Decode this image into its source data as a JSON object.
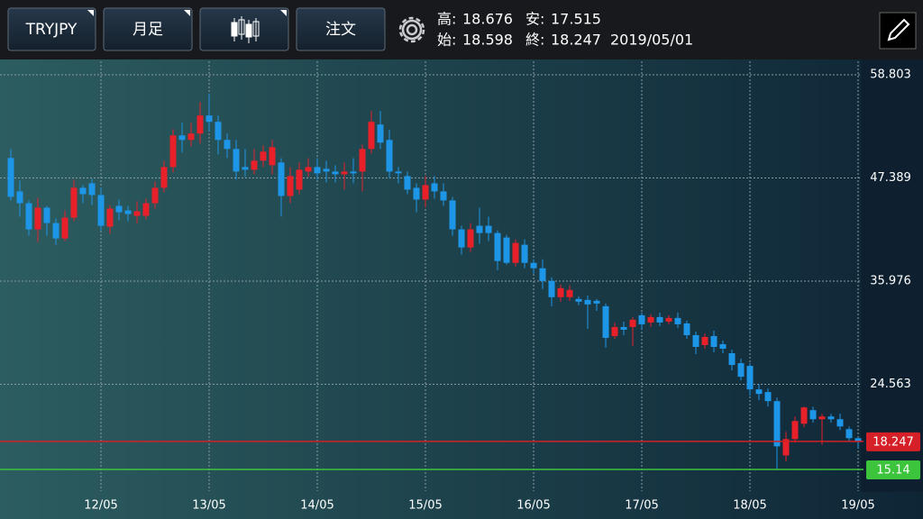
{
  "toolbar": {
    "symbol": "TRYJPY",
    "period": "月足",
    "order": "注文"
  },
  "ohlc_info": {
    "high_label": "高:",
    "high": 18.676,
    "low_label": "安:",
    "low": 17.515,
    "open_label": "始:",
    "open": 18.598,
    "close_label": "終:",
    "close": 18.247,
    "date": "2019/05/01"
  },
  "chart_data": {
    "type": "candlestick",
    "categories": [
      null,
      null,
      null,
      null,
      null,
      null,
      null,
      null,
      null,
      null,
      "12/05",
      null,
      null,
      null,
      null,
      null,
      null,
      null,
      null,
      null,
      null,
      null,
      "13/05",
      null,
      null,
      null,
      null,
      null,
      null,
      null,
      null,
      null,
      null,
      null,
      "14/05",
      null,
      null,
      null,
      null,
      null,
      null,
      null,
      null,
      null,
      null,
      null,
      "15/05",
      null,
      null,
      null,
      null,
      null,
      null,
      null,
      null,
      null,
      null,
      null,
      "16/05",
      null,
      null,
      null,
      null,
      null,
      null,
      null,
      null,
      null,
      null,
      null,
      "17/05",
      null,
      null,
      null,
      null,
      null,
      null,
      null,
      null,
      null,
      null,
      null,
      "18/05",
      null,
      null,
      null,
      null,
      null,
      null,
      null,
      null,
      null,
      null,
      null,
      "19/05"
    ],
    "open": [
      49.6,
      45.9,
      44.6,
      41.7,
      44.1,
      42.4,
      40.7,
      43.0,
      46.3,
      46.8,
      45.5,
      42.0,
      44.3,
      43.8,
      43.2,
      43.2,
      44.6,
      46.3,
      48.6,
      52.1,
      51.6,
      52.3,
      54.3,
      53.6,
      51.6,
      50.6,
      48.6,
      48.3,
      49.3,
      48.8,
      49.1,
      45.4,
      46.1,
      48.1,
      48.6,
      48.4,
      48.1,
      47.8,
      48.1,
      48.1,
      50.6,
      53.3,
      51.6,
      48.1,
      47.6,
      46.3,
      45.0,
      46.8,
      45.9,
      44.9,
      41.7,
      39.7,
      42.1,
      42.1,
      41.3,
      40.8,
      38.0,
      40.0,
      38.0,
      37.4,
      36.0,
      34.2,
      34.2,
      34.0,
      33.9,
      33.8,
      33.2,
      29.9,
      30.9,
      30.9,
      32.2,
      31.4,
      32.0,
      31.5,
      31.9,
      31.3,
      30.0,
      28.9,
      29.9,
      29.0,
      28.0,
      26.9,
      26.6,
      24.0,
      23.7,
      22.7,
      16.7,
      18.5,
      20.2,
      21.7,
      20.7,
      21.0,
      20.7,
      19.6,
      18.598
    ],
    "high": [
      50.6,
      47.1,
      44.9,
      45.2,
      44.3,
      42.9,
      43.8,
      47.2,
      46.6,
      47.3,
      46.3,
      44.4,
      45.0,
      44.3,
      44.8,
      45.1,
      47.0,
      49.3,
      52.8,
      53.5,
      53.5,
      55.8,
      56.7,
      54.3,
      52.3,
      51.6,
      50.6,
      50.6,
      51.0,
      51.6,
      49.6,
      48.6,
      49.1,
      49.6,
      49.6,
      49.3,
      48.8,
      49.1,
      49.6,
      51.1,
      54.8,
      54.8,
      52.7,
      48.6,
      48.1,
      46.8,
      47.6,
      47.6,
      46.8,
      45.3,
      42.1,
      42.4,
      44.1,
      43.1,
      41.6,
      41.1,
      40.6,
      40.6,
      38.4,
      38.4,
      36.4,
      35.6,
      35.5,
      34.3,
      34.4,
      34.0,
      33.5,
      31.4,
      31.5,
      32.0,
      32.5,
      32.3,
      32.5,
      32.2,
      32.5,
      31.6,
      30.4,
      30.2,
      30.5,
      29.4,
      28.4,
      27.4,
      26.9,
      24.6,
      24.1,
      23.1,
      19.3,
      21.0,
      22.1,
      22.1,
      21.3,
      21.3,
      21.3,
      19.9,
      18.676
    ],
    "low": [
      44.9,
      43.1,
      41.0,
      40.3,
      41.0,
      40.0,
      40.4,
      42.6,
      44.6,
      44.4,
      41.6,
      41.2,
      42.7,
      42.6,
      42.4,
      42.8,
      44.0,
      45.8,
      48.0,
      50.2,
      50.9,
      51.2,
      52.6,
      50.0,
      49.6,
      47.2,
      47.5,
      47.8,
      48.6,
      47.8,
      43.1,
      44.6,
      45.6,
      47.5,
      47.2,
      46.9,
      46.9,
      46.1,
      46.8,
      45.9,
      50.1,
      50.6,
      47.4,
      46.8,
      45.6,
      43.6,
      44.1,
      45.1,
      44.3,
      41.0,
      38.9,
      39.2,
      40.1,
      40.4,
      37.2,
      37.8,
      37.6,
      37.4,
      36.8,
      35.1,
      33.2,
      33.7,
      33.8,
      33.3,
      30.7,
      32.7,
      28.6,
      29.6,
      30.0,
      28.8,
      30.7,
      30.9,
      31.0,
      31.2,
      30.8,
      29.6,
      27.9,
      28.5,
      28.1,
      28.0,
      26.1,
      25.0,
      23.3,
      22.8,
      22.1,
      15.14,
      16.0,
      18.1,
      19.8,
      20.3,
      17.9,
      20.3,
      19.5,
      18.3,
      17.515
    ],
    "close": [
      45.3,
      44.6,
      41.7,
      44.1,
      42.4,
      40.7,
      43.0,
      46.3,
      45.6,
      45.5,
      42.1,
      44.0,
      43.6,
      43.4,
      43.7,
      44.6,
      46.3,
      48.6,
      52.1,
      51.6,
      52.3,
      54.3,
      53.6,
      51.6,
      50.6,
      48.1,
      48.3,
      49.3,
      50.3,
      50.8,
      45.4,
      47.6,
      48.3,
      48.6,
      47.9,
      48.1,
      47.8,
      48.1,
      47.9,
      50.6,
      53.6,
      51.3,
      48.1,
      47.9,
      46.1,
      45.0,
      46.6,
      45.9,
      44.9,
      41.7,
      39.7,
      41.7,
      41.3,
      41.3,
      38.2,
      38.0,
      40.2,
      38.0,
      37.4,
      36.0,
      34.2,
      35.2,
      35.0,
      33.7,
      33.4,
      33.5,
      29.7,
      30.9,
      30.6,
      31.7,
      31.2,
      32.0,
      31.4,
      31.9,
      31.2,
      30.0,
      28.7,
      29.8,
      28.7,
      28.5,
      26.7,
      25.4,
      24.0,
      23.5,
      22.7,
      17.7,
      18.5,
      20.5,
      22.0,
      20.7,
      21.0,
      20.7,
      19.9,
      18.6,
      18.247
    ],
    "up_color": "#e8202a",
    "down_color": "#1e96e8",
    "ylim": [
      12.75,
      60.3
    ],
    "yticks": [
      24.563,
      35.976,
      47.389,
      58.803
    ],
    "grid": true,
    "reference_lines": [
      {
        "value": 18.247,
        "color": "#d42026"
      },
      {
        "value": 15.14,
        "color": "#3cc43c"
      }
    ]
  }
}
